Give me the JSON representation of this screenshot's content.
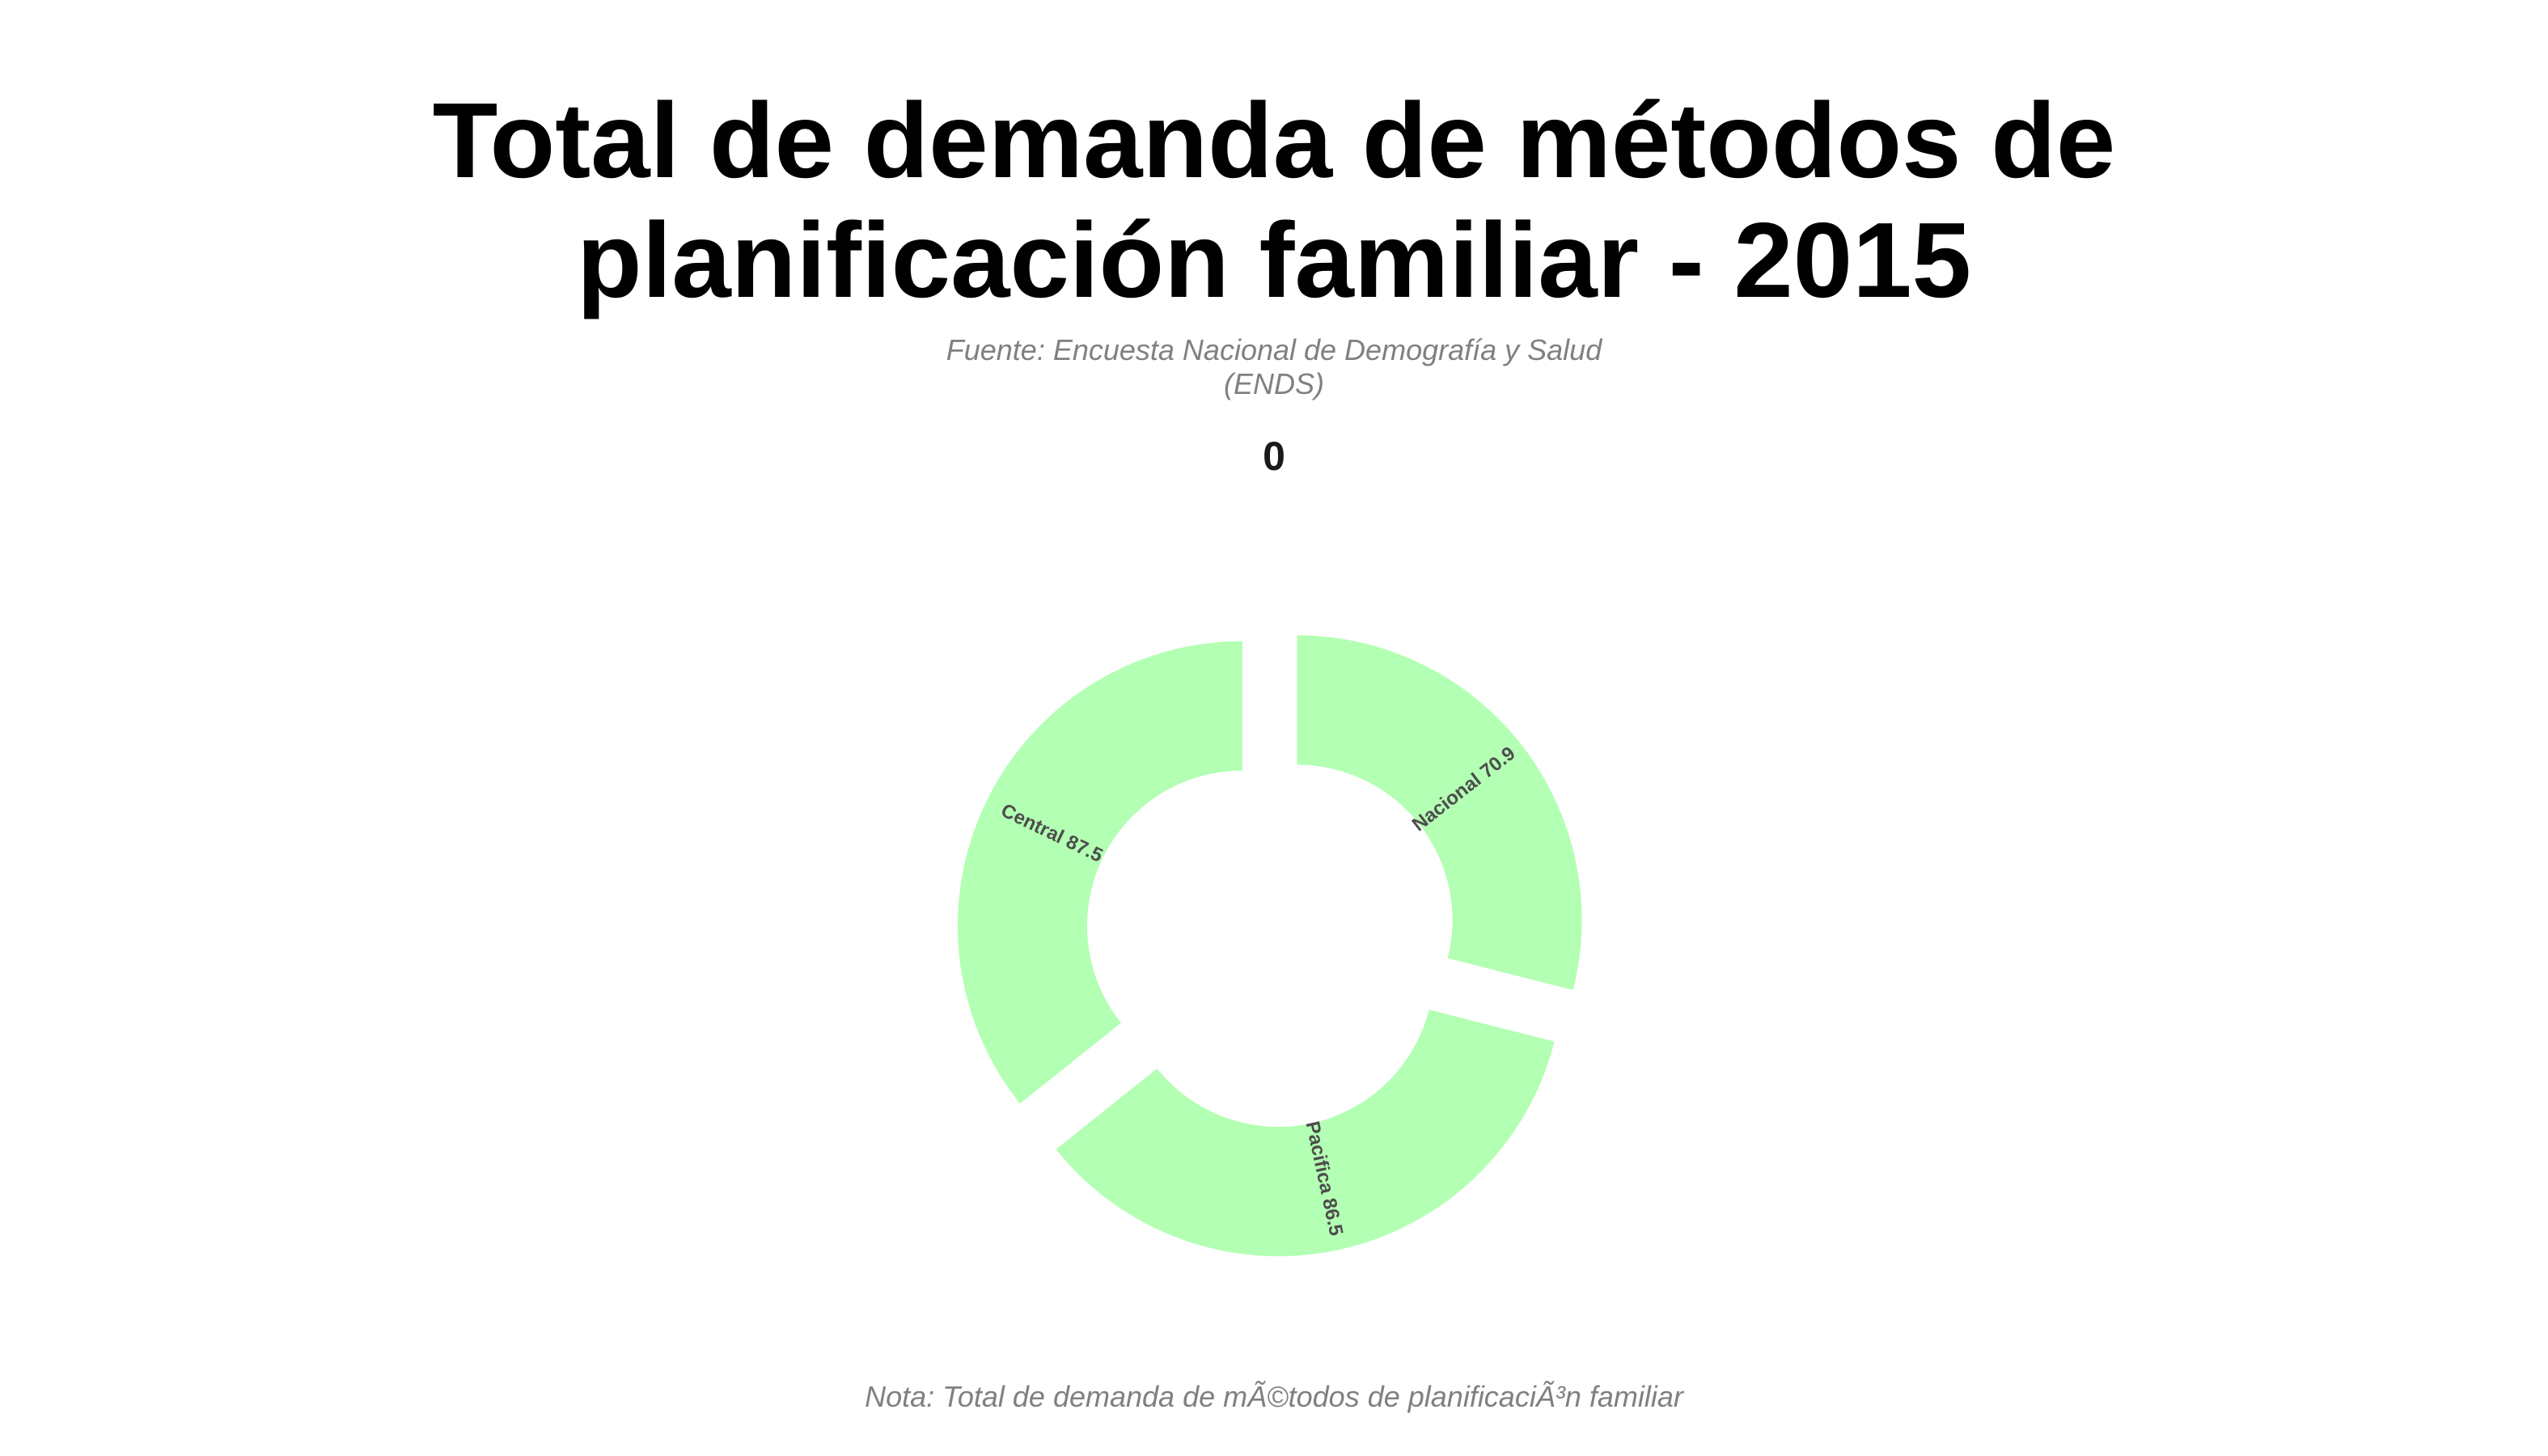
{
  "chart_data": {
    "type": "pie",
    "title": "Total de demanda de métodos de planificación familiar - 2015",
    "subtitle": "Fuente: Encuesta Nacional de Demografía y Salud (ENDS)",
    "facet_label": "0",
    "caption": "Nota: Total de demanda de mÃ©todos de planificaciÃ³n familiar",
    "style": "donut",
    "fill_color": "#b3ffb3",
    "label_color": "#4d4d4d",
    "categories": [
      "Central",
      "Nacional",
      "Pacifica"
    ],
    "values": [
      87.5,
      70.9,
      86.5
    ],
    "labels": [
      "Central 87.5",
      "Nacional 70.9",
      "Pacifica 86.5"
    ],
    "slice_order": [
      "Nacional",
      "Pacifica",
      "Central"
    ]
  }
}
